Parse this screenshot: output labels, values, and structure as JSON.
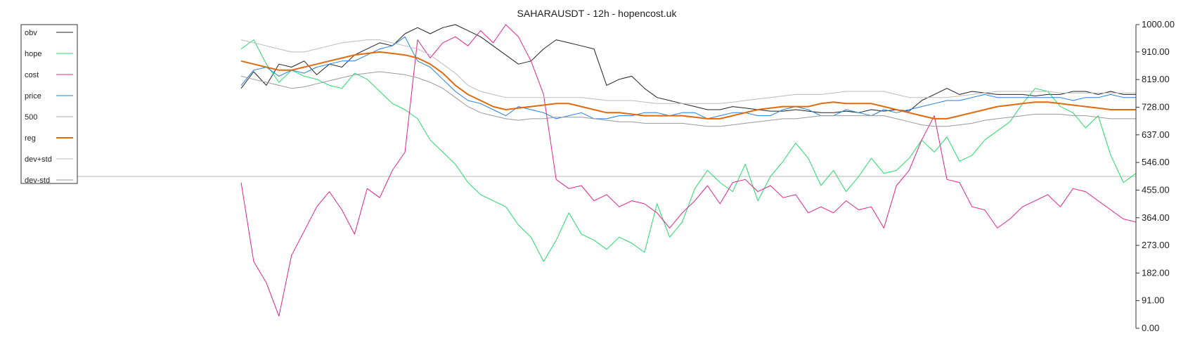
{
  "chart_data": {
    "type": "line",
    "title": "SAHARAUSDT - 12h - hopencost.uk",
    "xlabel": "",
    "ylabel": "",
    "ylim": [
      0,
      1000
    ],
    "y_ticks": [
      "0.00",
      "91.00",
      "182.00",
      "273.00",
      "364.00",
      "455.00",
      "546.00",
      "637.00",
      "728.00",
      "819.00",
      "910.00",
      "1000.00"
    ],
    "y_axis_side": "right",
    "grid": false,
    "reference_line": 500,
    "legend_position": "top-left",
    "x": [
      0,
      4,
      8,
      12,
      16,
      20,
      24,
      28,
      32,
      36,
      40,
      44,
      48,
      52,
      56,
      60,
      64,
      68,
      72,
      76,
      80,
      84,
      88,
      92,
      96,
      100,
      104,
      108,
      112,
      116,
      120,
      124,
      128,
      132,
      136,
      140,
      144,
      148,
      152,
      156,
      160,
      164,
      168,
      172,
      176,
      180,
      184,
      188,
      192,
      196,
      200,
      204,
      208,
      212,
      216,
      220,
      224,
      228,
      232,
      236,
      240,
      244,
      248,
      252,
      256,
      260,
      264,
      268,
      272,
      276,
      280,
      284,
      288,
      292,
      296,
      300,
      304,
      308,
      312,
      316,
      320,
      324,
      328,
      332,
      336,
      340
    ],
    "series": [
      {
        "name": "obv",
        "color": "#222222",
        "width": 1,
        "values": [
          null,
          null,
          null,
          null,
          null,
          null,
          null,
          null,
          null,
          null,
          null,
          null,
          null,
          null,
          790,
          845,
          800,
          870,
          860,
          880,
          835,
          870,
          860,
          900,
          920,
          940,
          930,
          970,
          990,
          970,
          990,
          1000,
          980,
          960,
          930,
          900,
          870,
          880,
          920,
          950,
          940,
          930,
          920,
          800,
          820,
          830,
          790,
          760,
          750,
          740,
          730,
          720,
          720,
          730,
          725,
          720,
          715,
          715,
          720,
          715,
          710,
          710,
          715,
          710,
          720,
          715,
          720,
          715,
          750,
          770,
          790,
          770,
          780,
          775,
          770,
          770,
          770,
          765,
          770,
          770,
          780,
          780,
          770,
          780,
          770,
          770
        ]
      },
      {
        "name": "hope",
        "color": "#22dd66",
        "width": 1,
        "values": [
          null,
          null,
          null,
          null,
          null,
          null,
          null,
          null,
          null,
          null,
          null,
          null,
          null,
          null,
          920,
          950,
          870,
          810,
          850,
          830,
          820,
          800,
          790,
          840,
          820,
          780,
          740,
          720,
          690,
          620,
          580,
          540,
          480,
          440,
          420,
          400,
          340,
          300,
          220,
          290,
          380,
          310,
          290,
          260,
          300,
          280,
          250,
          410,
          300,
          350,
          460,
          520,
          480,
          450,
          540,
          420,
          500,
          550,
          610,
          560,
          470,
          520,
          450,
          500,
          560,
          510,
          520,
          560,
          620,
          580,
          630,
          550,
          570,
          620,
          650,
          680,
          740,
          790,
          780,
          730,
          710,
          660,
          700,
          570,
          480,
          510
        ]
      },
      {
        "name": "cost",
        "color": "#e0228a",
        "width": 1,
        "values": [
          null,
          null,
          null,
          null,
          null,
          null,
          null,
          null,
          null,
          null,
          null,
          null,
          null,
          null,
          480,
          220,
          150,
          40,
          240,
          320,
          400,
          450,
          390,
          310,
          460,
          430,
          520,
          580,
          950,
          890,
          940,
          960,
          930,
          980,
          940,
          1000,
          960,
          880,
          770,
          490,
          460,
          470,
          420,
          440,
          400,
          420,
          410,
          380,
          330,
          380,
          420,
          470,
          410,
          480,
          490,
          450,
          470,
          430,
          440,
          380,
          400,
          380,
          420,
          390,
          400,
          330,
          470,
          520,
          620,
          700,
          490,
          480,
          400,
          390,
          330,
          360,
          400,
          420,
          440,
          400,
          460,
          450,
          420,
          390,
          360,
          350
        ]
      },
      {
        "name": "price",
        "color": "#1f7fe0",
        "width": 1,
        "values": [
          null,
          null,
          null,
          null,
          null,
          null,
          null,
          null,
          null,
          null,
          null,
          null,
          null,
          null,
          800,
          850,
          860,
          830,
          850,
          840,
          860,
          870,
          880,
          880,
          900,
          920,
          930,
          960,
          880,
          860,
          820,
          780,
          750,
          740,
          720,
          700,
          730,
          720,
          710,
          690,
          700,
          710,
          690,
          690,
          700,
          700,
          710,
          710,
          700,
          710,
          710,
          690,
          700,
          710,
          710,
          700,
          700,
          720,
          730,
          720,
          700,
          700,
          720,
          710,
          700,
          720,
          710,
          720,
          730,
          740,
          750,
          750,
          760,
          770,
          760,
          760,
          760,
          760,
          760,
          760,
          750,
          760,
          760,
          770,
          760,
          760
        ]
      },
      {
        "name": "500",
        "color": "#aaaaaa",
        "width": 1,
        "values": [
          500,
          500,
          500,
          500,
          500,
          500,
          500,
          500,
          500,
          500,
          500,
          500,
          500,
          500,
          500,
          500,
          500,
          500,
          500,
          500,
          500,
          500,
          500,
          500,
          500,
          500,
          500,
          500,
          500,
          500,
          500,
          500,
          500,
          500,
          500,
          500,
          500,
          500,
          500,
          500,
          500,
          500,
          500,
          500,
          500,
          500,
          500,
          500,
          500,
          500,
          500,
          500,
          500,
          500,
          500,
          500,
          500,
          500,
          500,
          500,
          500,
          500,
          500,
          500,
          500,
          500,
          500,
          500,
          500,
          500,
          500,
          500,
          500,
          500,
          500,
          500,
          500,
          500,
          500,
          500,
          500,
          500,
          500,
          500,
          500,
          500
        ]
      },
      {
        "name": "reg",
        "color": "#e06a10",
        "width": 2,
        "values": [
          null,
          null,
          null,
          null,
          null,
          null,
          null,
          null,
          null,
          null,
          null,
          null,
          null,
          null,
          880,
          870,
          860,
          850,
          850,
          860,
          870,
          880,
          890,
          900,
          905,
          910,
          905,
          900,
          890,
          870,
          840,
          800,
          770,
          750,
          730,
          720,
          725,
          730,
          735,
          740,
          740,
          730,
          720,
          710,
          710,
          705,
          700,
          700,
          700,
          700,
          695,
          690,
          690,
          700,
          710,
          720,
          725,
          730,
          730,
          730,
          740,
          745,
          740,
          740,
          740,
          730,
          720,
          710,
          700,
          690,
          690,
          700,
          710,
          720,
          730,
          735,
          740,
          745,
          745,
          740,
          735,
          730,
          725,
          720,
          720,
          720
        ]
      },
      {
        "name": "dev+std",
        "color": "#bbbbbb",
        "width": 1,
        "values": [
          null,
          null,
          null,
          null,
          null,
          null,
          null,
          null,
          null,
          null,
          null,
          null,
          null,
          null,
          950,
          940,
          930,
          920,
          910,
          910,
          920,
          930,
          940,
          945,
          950,
          950,
          940,
          930,
          920,
          900,
          870,
          840,
          800,
          780,
          770,
          760,
          760,
          760,
          760,
          760,
          760,
          760,
          755,
          750,
          750,
          750,
          745,
          740,
          740,
          740,
          740,
          740,
          740,
          745,
          750,
          755,
          760,
          765,
          770,
          770,
          770,
          775,
          780,
          780,
          780,
          780,
          770,
          760,
          760,
          760,
          760,
          765,
          770,
          775,
          780,
          780,
          780,
          780,
          780,
          775,
          775,
          775,
          775,
          775,
          775,
          775
        ]
      },
      {
        "name": "dev-std",
        "color": "#999999",
        "width": 1,
        "values": [
          null,
          null,
          null,
          null,
          null,
          null,
          null,
          null,
          null,
          null,
          null,
          null,
          null,
          null,
          830,
          820,
          810,
          800,
          790,
          795,
          805,
          815,
          825,
          835,
          840,
          845,
          840,
          835,
          825,
          810,
          790,
          760,
          730,
          710,
          700,
          690,
          685,
          690,
          690,
          695,
          695,
          695,
          690,
          685,
          680,
          680,
          675,
          675,
          675,
          675,
          670,
          665,
          665,
          670,
          675,
          680,
          685,
          690,
          690,
          695,
          700,
          700,
          700,
          700,
          700,
          700,
          690,
          680,
          670,
          665,
          665,
          670,
          675,
          685,
          690,
          695,
          700,
          705,
          705,
          705,
          700,
          700,
          695,
          690,
          690,
          690
        ]
      }
    ]
  }
}
